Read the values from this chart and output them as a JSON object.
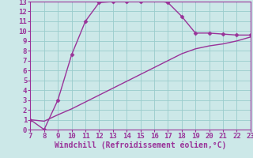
{
  "line1_x": [
    7,
    8,
    9,
    10,
    11,
    12,
    13,
    14,
    15,
    16,
    17,
    18,
    19,
    20,
    21,
    22,
    23
  ],
  "line1_y": [
    1,
    0,
    3,
    7.6,
    11,
    12.9,
    13,
    13,
    13,
    13.15,
    12.9,
    11.5,
    9.8,
    9.8,
    9.7,
    9.6,
    9.6
  ],
  "line2_x": [
    7,
    8,
    9,
    10,
    11,
    12,
    13,
    14,
    15,
    16,
    17,
    18,
    19,
    20,
    21,
    22,
    23
  ],
  "line2_y": [
    1,
    0.85,
    1.5,
    2.1,
    2.8,
    3.5,
    4.2,
    4.9,
    5.6,
    6.3,
    7.0,
    7.7,
    8.2,
    8.5,
    8.7,
    9.0,
    9.4
  ],
  "line_color": "#993399",
  "bg_color": "#cce8e8",
  "grid_color": "#99cccc",
  "xlabel": "Windchill (Refroidissement éolien,°C)",
  "xlim": [
    7,
    23
  ],
  "ylim": [
    0,
    13
  ],
  "xticks": [
    7,
    8,
    9,
    10,
    11,
    12,
    13,
    14,
    15,
    16,
    17,
    18,
    19,
    20,
    21,
    22,
    23
  ],
  "yticks": [
    0,
    1,
    2,
    3,
    4,
    5,
    6,
    7,
    8,
    9,
    10,
    11,
    12,
    13
  ],
  "marker": "D",
  "markersize": 2.5,
  "linewidth": 1.0,
  "xlabel_fontsize": 7,
  "tick_fontsize": 6.5,
  "tick_color": "#993399",
  "xlabel_color": "#993399",
  "spine_color": "#993399"
}
